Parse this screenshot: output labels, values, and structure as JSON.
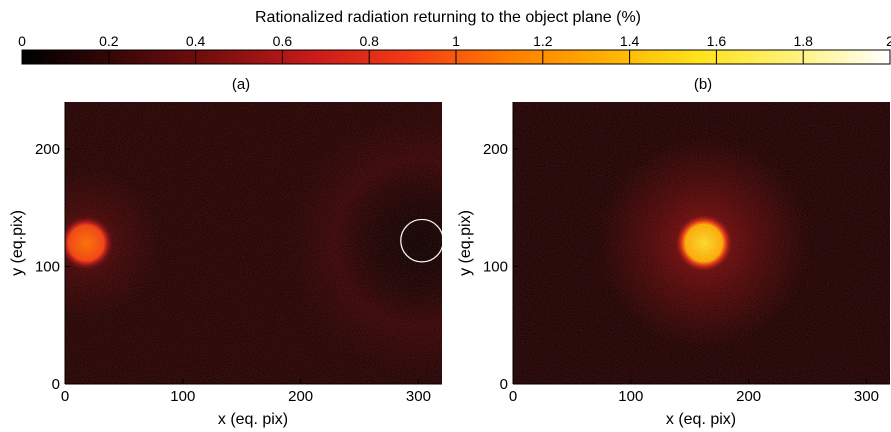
{
  "colorbar": {
    "title": "Rationalized radiation returning to the object plane (%)",
    "ticks": [
      "0",
      "0.2",
      "0.4",
      "0.6",
      "0.8",
      "1",
      "1.2",
      "1.4",
      "1.6",
      "1.8",
      "2"
    ],
    "range": [
      0,
      2
    ],
    "colormap": [
      "#000000",
      "#3a0707",
      "#7a0e0e",
      "#c81a1a",
      "#f23a16",
      "#ff7a00",
      "#ffae00",
      "#ffe21a",
      "#fff27a",
      "#ffffff"
    ]
  },
  "chart_data": [
    {
      "type": "heatmap",
      "label": "(a)",
      "xlabel": "x (eq. pix)",
      "ylabel": "y (eq.pix)",
      "xlim": [
        0,
        320
      ],
      "ylim": [
        0,
        240
      ],
      "xticks": [
        "0",
        "100",
        "200",
        "300"
      ],
      "yticks": [
        "0",
        "100",
        "200"
      ],
      "background_level": 0.12,
      "spots": [
        {
          "x": 18,
          "y": 120,
          "peak": 1.1,
          "core_radius": 17,
          "halo_radius": 65,
          "halo_level": 0.22
        }
      ],
      "ring_glow": {
        "x": 300,
        "y": 120,
        "inner_radius": 30,
        "outer_radius": 110,
        "level": 0.2
      },
      "circle_marker": {
        "x": 303,
        "y": 122,
        "radius": 18,
        "color": "#ffffff"
      }
    },
    {
      "type": "heatmap",
      "label": "(b)",
      "xlabel": "x (eq. pix)",
      "ylabel": "y (eq.pix)",
      "xlim": [
        0,
        320
      ],
      "ylim": [
        0,
        240
      ],
      "xticks": [
        "0",
        "100",
        "200",
        "300"
      ],
      "yticks": [
        "0",
        "100",
        "200"
      ],
      "background_level": 0.1,
      "spots": [
        {
          "x": 162,
          "y": 120,
          "peak": 1.6,
          "core_radius": 18,
          "halo_radius": 90,
          "halo_level": 0.3
        }
      ]
    }
  ]
}
